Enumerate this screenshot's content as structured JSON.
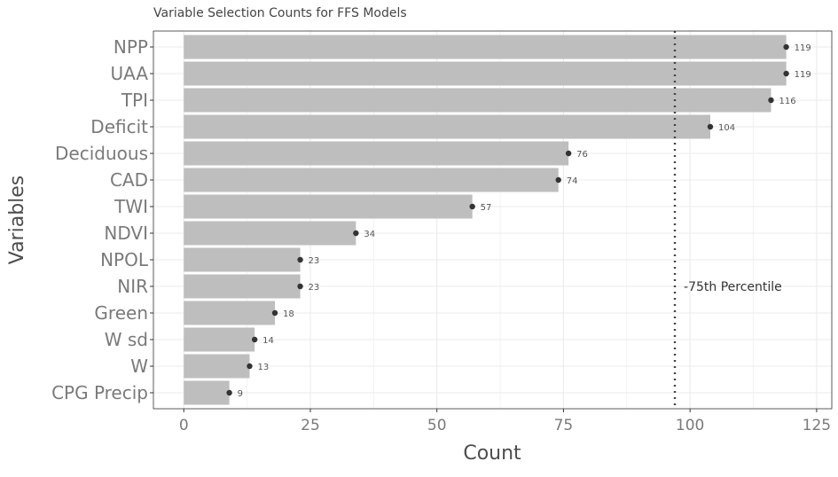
{
  "chart_data": {
    "type": "bar",
    "orientation": "horizontal",
    "title": "Variable Selection Counts for FFS Models",
    "xlabel": "Count",
    "ylabel": "Variables",
    "categories": [
      "NPP",
      "UAA",
      "TPI",
      "Deficit",
      "Deciduous",
      "CAD",
      "TWI",
      "NDVI",
      "NPOL",
      "NIR",
      "Green",
      "W sd",
      "W",
      "CPG Precip"
    ],
    "values": [
      119,
      119,
      116,
      104,
      76,
      74,
      57,
      34,
      23,
      23,
      18,
      14,
      13,
      9
    ],
    "value_labels": [
      "119",
      "119",
      "116",
      "104",
      "76",
      "74",
      "57",
      "34",
      "23",
      "23",
      "18",
      "14",
      "13",
      "9"
    ],
    "xlim": [
      -6,
      128
    ],
    "x_ticks": [
      0,
      25,
      50,
      75,
      100,
      125
    ],
    "x_tick_labels": [
      "0",
      "25",
      "50",
      "75",
      "100",
      "125"
    ],
    "grid": true,
    "reference_line": {
      "value": 97,
      "style": "dotted",
      "label": "-75th Percentile"
    },
    "colors": {
      "bar": "#bebebe",
      "point": "#333333",
      "reference_line": "#444444",
      "grid": "#ebebeb",
      "panel_border": "#333333"
    }
  }
}
